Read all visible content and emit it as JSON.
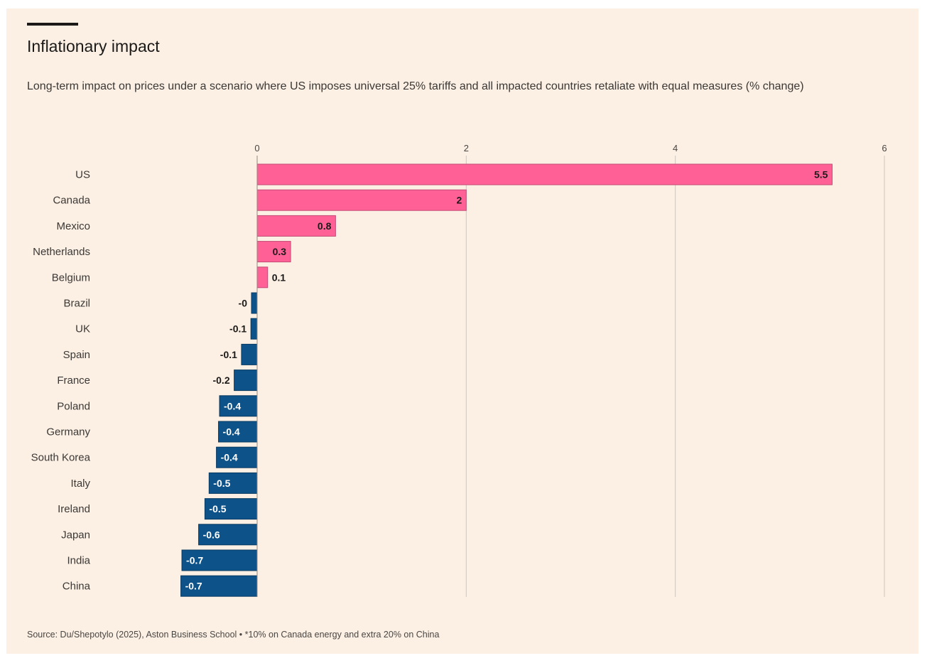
{
  "header": {
    "title": "Inflationary impact",
    "subtitle": "Long-term impact on prices under a scenario where US imposes universal 25% tariffs and all impacted countries retaliate with equal measures (% change)"
  },
  "footer": {
    "source": "Source: Du/Shepotylo (2025), Aston Business School • *10% on Canada energy and extra 20% on China"
  },
  "colors": {
    "positive": "#ff6196",
    "negative": "#0d5289",
    "background": "#fcf0e4",
    "grid": "#cfc6bd"
  },
  "chart_data": {
    "type": "bar",
    "orientation": "horizontal",
    "title": "Inflationary impact",
    "subtitle": "Long-term impact on prices under a scenario where US imposes universal 25% tariffs and all impacted countries retaliate with equal measures (% change)",
    "xlim": [
      0,
      6
    ],
    "xticks": [
      0,
      2,
      4,
      6
    ],
    "grid": true,
    "categories": [
      "US",
      "Canada",
      "Mexico",
      "Netherlands",
      "Belgium",
      "Brazil",
      "UK",
      "Spain",
      "France",
      "Poland",
      "Germany",
      "South Korea",
      "Italy",
      "Ireland",
      "Japan",
      "India",
      "China"
    ],
    "values": [
      5.5,
      2,
      0.75,
      0.32,
      0.1,
      -0.04,
      -0.06,
      -0.15,
      -0.22,
      -0.36,
      -0.37,
      -0.39,
      -0.46,
      -0.5,
      -0.56,
      -0.72,
      -0.73
    ],
    "data_labels": [
      "5.5",
      "2",
      "0.8",
      "0.3",
      "0.1",
      "-0",
      "-0.1",
      "-0.1",
      "-0.2",
      "-0.4",
      "-0.4",
      "-0.4",
      "-0.5",
      "-0.5",
      "-0.6",
      "-0.7",
      "-0.7"
    ]
  }
}
